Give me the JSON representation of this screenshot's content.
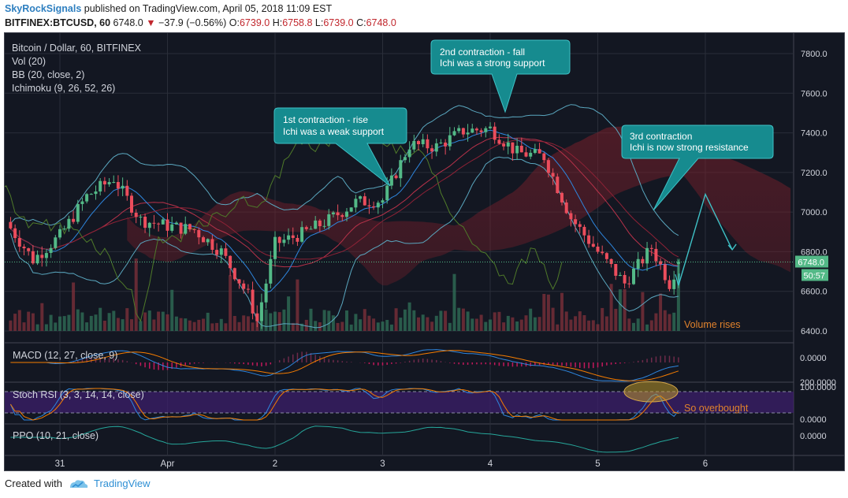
{
  "header": {
    "author": "SkyRockSignals",
    "published_text": "published on TradingView.com, April 05, 2018 11:09 EST",
    "symbol_line": "BITFINEX:BTCUSD, 60",
    "last_price": "6748.0",
    "change_arrow": "▼",
    "change": "−37.9 (−0.56%)",
    "open_label": "O:",
    "open": "6739.0",
    "high_label": "H:",
    "high": "6758.8",
    "low_label": "L:",
    "low": "6739.0",
    "close_label": "C:",
    "close": "6748.0"
  },
  "legend": {
    "main": "Bitcoin / Dollar, 60, BITFINEX",
    "vol": "Vol (20)",
    "bb": "BB (20, close, 2)",
    "ichimoku": "Ichimoku (9, 26, 52, 26)"
  },
  "annotations": {
    "first": [
      "1st contraction - rise",
      "Ichi was a weak support"
    ],
    "second": [
      "2nd contraction - fall",
      "Ichi was a strong support"
    ],
    "third": [
      "3rd contraction",
      "Ichi is now strong resistance"
    ],
    "volume": "Volume rises",
    "overbought": "So overbought"
  },
  "price_axis": {
    "ticks": [
      "7800.0",
      "7600.0",
      "7400.0",
      "7200.0",
      "7000.0",
      "6800.0",
      "6600.0",
      "6400.0"
    ],
    "current_price": "6748.0",
    "countdown": "50:57"
  },
  "panes": {
    "macd": {
      "label": "MACD (12, 27, close, 9)",
      "tick": "0.0000"
    },
    "stoch": {
      "label": "Stoch RSI (3, 3, 14, 14, close)",
      "ticks": [
        "100.0000",
        "0.0000"
      ],
      "overlap_tick": "200.0000"
    },
    "ppo": {
      "label": "PPO (10, 21, close)",
      "tick": "0.0000"
    }
  },
  "time_axis": {
    "labels": [
      "31",
      "Apr",
      "2",
      "3",
      "4",
      "5",
      "6"
    ]
  },
  "footer": {
    "created_with": "Created with",
    "brand": "TradingView"
  },
  "colors": {
    "background": "#131722",
    "up": "#53b987",
    "down": "#eb4d5c",
    "callout": "#168b8f",
    "bb": "#5aa7bf",
    "annotation_orange": "#e0822c"
  },
  "chart_data": {
    "type": "candlestick",
    "symbol": "BTCUSD",
    "exchange": "BITFINEX",
    "interval_minutes": 60,
    "ylim": [
      6350,
      7900
    ],
    "y_ticks": [
      7800,
      7600,
      7400,
      7200,
      7000,
      6800,
      6600,
      6400
    ],
    "x_labels": [
      "31",
      "Apr",
      "2",
      "3",
      "4",
      "5",
      "6"
    ],
    "close_path_approx": [
      {
        "t": "Mar 30 12:00",
        "close": 6950
      },
      {
        "t": "Mar 30 18:00",
        "close": 6760
      },
      {
        "t": "Mar 31 00:00",
        "close": 6880
      },
      {
        "t": "Mar 31 06:00",
        "close": 7080
      },
      {
        "t": "Mar 31 12:00",
        "close": 7170
      },
      {
        "t": "Mar 31 18:00",
        "close": 6960
      },
      {
        "t": "Apr 1 00:00",
        "close": 6930
      },
      {
        "t": "Apr 1 06:00",
        "close": 6910
      },
      {
        "t": "Apr 1 12:00",
        "close": 6800
      },
      {
        "t": "Apr 1 18:00",
        "close": 6580
      },
      {
        "t": "Apr 1 20:00",
        "close": 6450
      },
      {
        "t": "Apr 2 00:00",
        "close": 6840
      },
      {
        "t": "Apr 2 06:00",
        "close": 6890
      },
      {
        "t": "Apr 2 12:00",
        "close": 6960
      },
      {
        "t": "Apr 2 18:00",
        "close": 7050
      },
      {
        "t": "Apr 3 00:00",
        "close": 7060
      },
      {
        "t": "Apr 3 06:00",
        "close": 7340
      },
      {
        "t": "Apr 3 12:00",
        "close": 7330
      },
      {
        "t": "Apr 3 18:00",
        "close": 7410
      },
      {
        "t": "Apr 4 00:00",
        "close": 7420
      },
      {
        "t": "Apr 4 06:00",
        "close": 7300
      },
      {
        "t": "Apr 4 12:00",
        "close": 7280
      },
      {
        "t": "Apr 4 18:00",
        "close": 6970
      },
      {
        "t": "Apr 5 00:00",
        "close": 6800
      },
      {
        "t": "Apr 5 06:00",
        "close": 6640
      },
      {
        "t": "Apr 5 12:00",
        "close": 6820
      },
      {
        "t": "Apr 5 16:00",
        "close": 6640
      },
      {
        "t": "Apr 5 18:00",
        "close": 6748
      }
    ],
    "projection": [
      {
        "t": "Apr 5 18:00",
        "value": 6630
      },
      {
        "t": "Apr 6 00:00",
        "value": 7090
      },
      {
        "t": "Apr 6 06:00",
        "value": 6810
      }
    ],
    "last": {
      "open": 6739.0,
      "high": 6758.8,
      "low": 6739.0,
      "close": 6748.0,
      "change": -37.9,
      "change_pct": -0.56
    },
    "indicators": [
      "Vol (20)",
      "BB (20, close, 2)",
      "Ichimoku (9, 26, 52, 26)",
      "MACD (12, 27, close, 9)",
      "Stoch RSI (3, 3, 14, 14, close)",
      "PPO (10, 21, close)"
    ]
  }
}
